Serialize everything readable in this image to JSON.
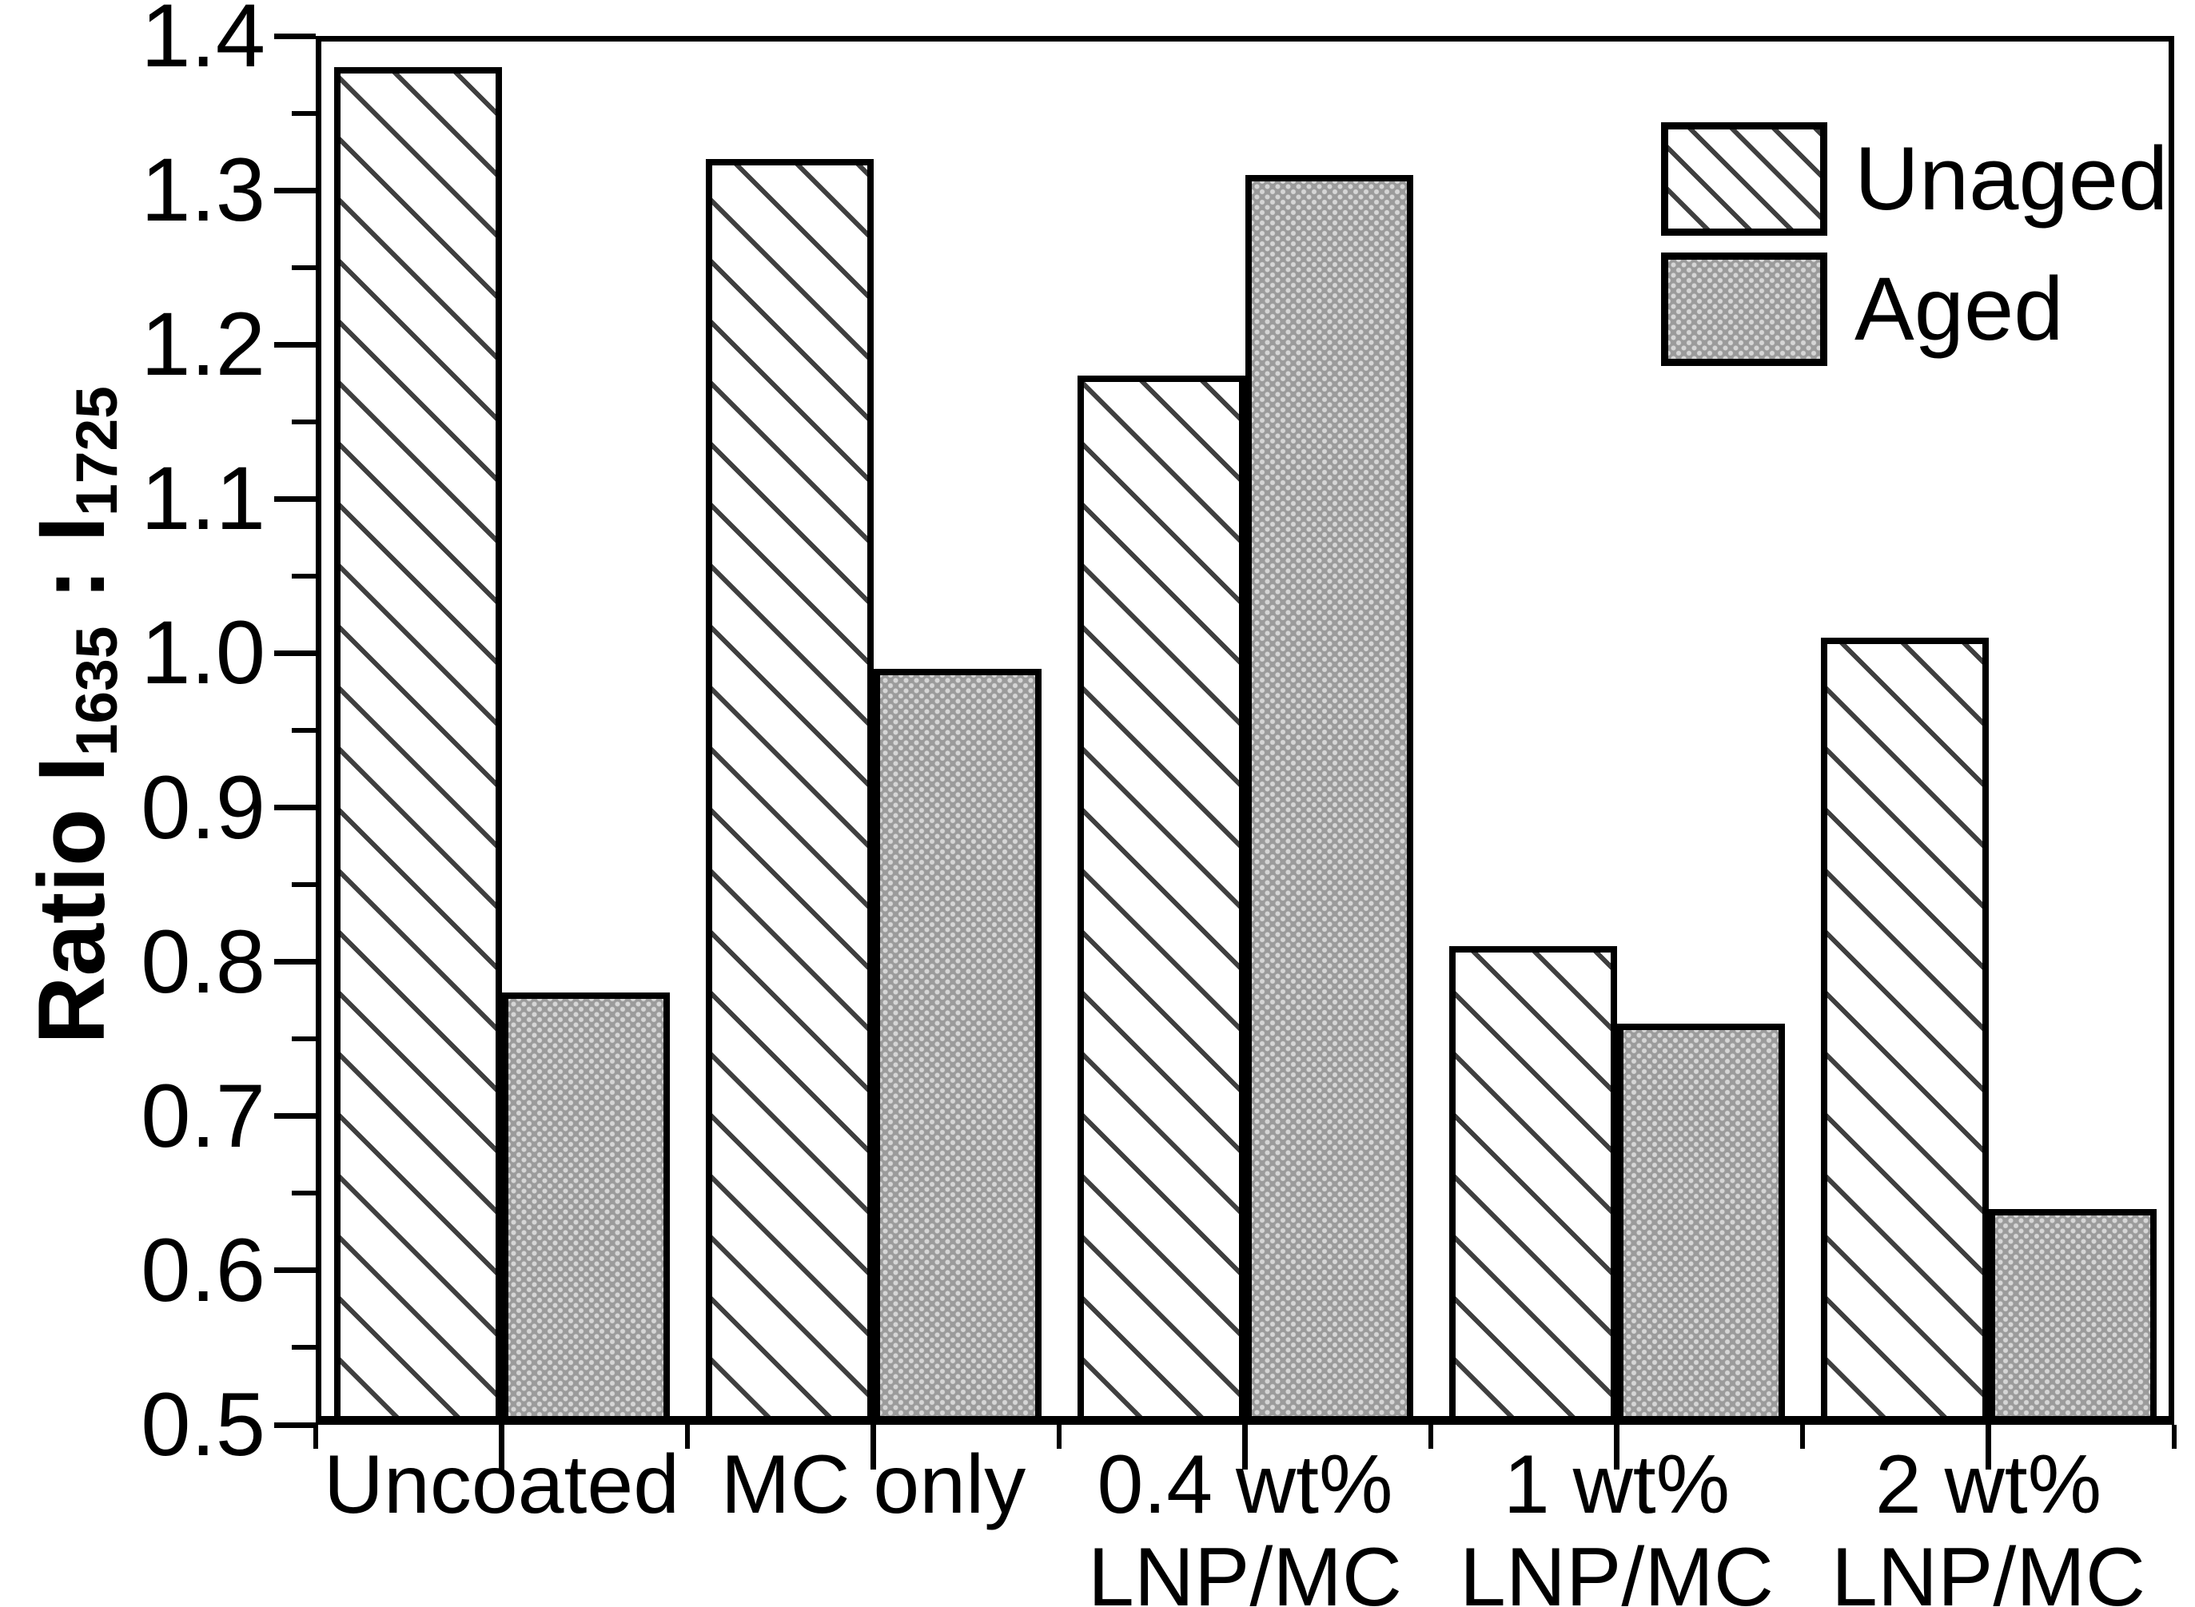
{
  "chart_data": {
    "type": "bar",
    "title": "",
    "xlabel": "",
    "ylabel": "Ratio I1635 : I1725",
    "ylabel_parts": {
      "prefix": "Ratio I",
      "sub1": "1635",
      "mid": " : I",
      "sub2": "1725"
    },
    "categories": [
      "Uncoated",
      "MC only",
      "0.4 wt% LNP/MC",
      "1 wt% LNP/MC",
      "2 wt% LNP/MC"
    ],
    "category_lines": [
      [
        "Uncoated"
      ],
      [
        "MC only"
      ],
      [
        "0.4 wt%",
        "LNP/MC"
      ],
      [
        "1 wt%",
        "LNP/MC"
      ],
      [
        "2 wt%",
        "LNP/MC"
      ]
    ],
    "series": [
      {
        "name": "Unaged",
        "style": "hatched-diagonal",
        "values": [
          1.38,
          1.32,
          1.18,
          0.81,
          1.01
        ]
      },
      {
        "name": "Aged",
        "style": "gray-dotted",
        "values": [
          0.78,
          0.99,
          1.31,
          0.76,
          0.64
        ]
      }
    ],
    "ylim": [
      0.5,
      1.4
    ],
    "yticks": [
      "1.4",
      "1.3",
      "1.2",
      "1.1",
      "1.0",
      "0.9",
      "0.8",
      "0.7",
      "0.6",
      "0.5"
    ],
    "yticks_minor": [
      1.35,
      1.25,
      1.15,
      1.05,
      0.95,
      0.85,
      0.75,
      0.65,
      0.55
    ],
    "grid": "off",
    "legend_position": "top-right",
    "colors": {
      "ink": "#000000",
      "background": "#ffffff",
      "aged_fill": "#9b9b9b",
      "aged_dot": "#d6d6d6",
      "hatch_line": "#3f3f3f"
    }
  }
}
